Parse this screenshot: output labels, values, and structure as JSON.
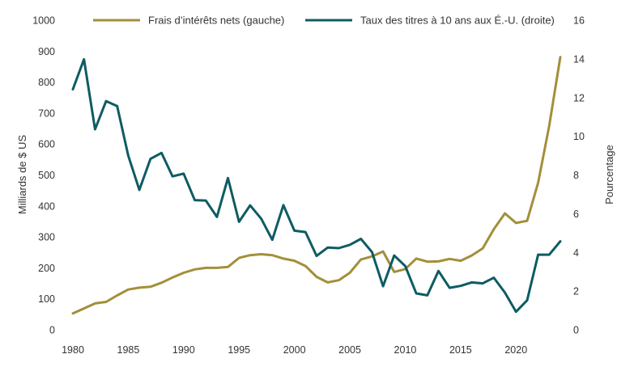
{
  "chart_data": {
    "type": "line",
    "title": "",
    "xlabel": "",
    "xlim": [
      1980,
      2024
    ],
    "x_ticks": [
      1980,
      1985,
      1990,
      1995,
      2000,
      2005,
      2010,
      2015,
      2020
    ],
    "y_left": {
      "label": "Milliards de $ US",
      "lim": [
        0,
        1000
      ],
      "ticks": [
        0,
        100,
        200,
        300,
        400,
        500,
        600,
        700,
        800,
        900,
        1000
      ]
    },
    "y_right": {
      "label": "Pourcentage",
      "lim": [
        0,
        16
      ],
      "ticks": [
        0,
        2,
        4,
        6,
        8,
        10,
        12,
        14,
        16
      ]
    },
    "legend_position": "top",
    "series": [
      {
        "name": "Frais d’intérêts nets (gauche)",
        "axis": "left",
        "color": "#A38F3A",
        "x": [
          1980,
          1981,
          1982,
          1983,
          1984,
          1985,
          1986,
          1987,
          1988,
          1989,
          1990,
          1991,
          1992,
          1993,
          1994,
          1995,
          1996,
          1997,
          1998,
          1999,
          2000,
          2001,
          2002,
          2003,
          2004,
          2005,
          2006,
          2007,
          2008,
          2009,
          2010,
          2011,
          2012,
          2013,
          2014,
          2015,
          2016,
          2017,
          2018,
          2019,
          2020,
          2021,
          2022,
          2023,
          2024
        ],
        "values": [
          53,
          69,
          85,
          90,
          111,
          130,
          136,
          139,
          152,
          169,
          184,
          195,
          200,
          200,
          203,
          232,
          241,
          244,
          241,
          230,
          223,
          206,
          171,
          153,
          160,
          184,
          227,
          237,
          253,
          187,
          196,
          230,
          220,
          221,
          229,
          223,
          240,
          263,
          325,
          376,
          345,
          352,
          475,
          659,
          881
        ]
      },
      {
        "name": "Taux des titres à 10 ans aux É.-U. (droite)",
        "axis": "right",
        "color": "#0D5C63",
        "x": [
          1980,
          1981,
          1982,
          1983,
          1984,
          1985,
          1986,
          1987,
          1988,
          1989,
          1990,
          1991,
          1992,
          1993,
          1994,
          1995,
          1996,
          1997,
          1998,
          1999,
          2000,
          2001,
          2002,
          2003,
          2004,
          2005,
          2006,
          2007,
          2008,
          2009,
          2010,
          2011,
          2012,
          2013,
          2014,
          2015,
          2016,
          2017,
          2018,
          2019,
          2020,
          2021,
          2022,
          2023,
          2024
        ],
        "values": [
          12.43,
          13.98,
          10.36,
          11.82,
          11.56,
          9.0,
          7.23,
          8.83,
          9.14,
          7.93,
          8.07,
          6.7,
          6.68,
          5.83,
          7.84,
          5.58,
          6.43,
          5.74,
          4.65,
          6.44,
          5.12,
          5.05,
          3.82,
          4.25,
          4.22,
          4.39,
          4.7,
          4.02,
          2.25,
          3.84,
          3.29,
          1.88,
          1.78,
          3.04,
          2.17,
          2.27,
          2.45,
          2.4,
          2.69,
          1.92,
          0.93,
          1.52,
          3.88,
          3.88,
          4.57
        ]
      }
    ]
  }
}
